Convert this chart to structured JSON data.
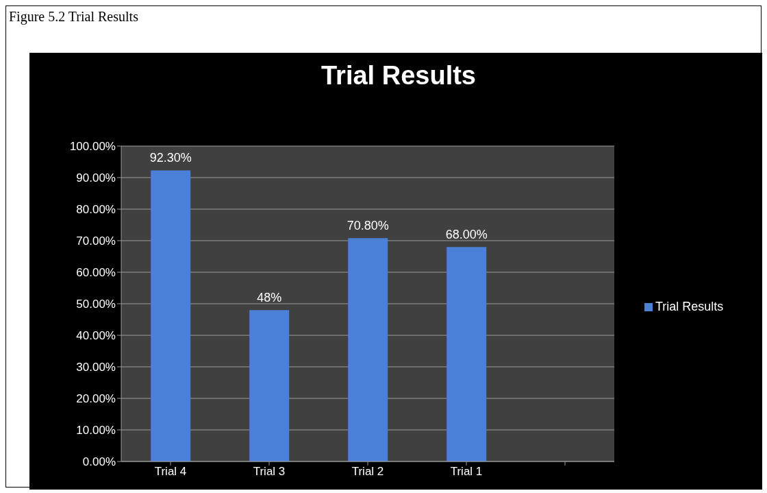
{
  "chart_data": {
    "type": "bar",
    "title": "Trial Results",
    "annotations": [
      "Figure 5.2 Trial Results"
    ],
    "categories": [
      "Trial 4",
      "Trial 3",
      "Trial 2",
      "Trial 1",
      null
    ],
    "series": [
      {
        "name": "Trial Results",
        "color": "#4a80d6",
        "values": [
          92.3,
          48,
          70.8,
          68,
          null
        ],
        "value_labels": [
          "92.30%",
          "48%",
          "70.80%",
          "68.00%",
          null
        ]
      }
    ],
    "ylim": [
      0,
      100
    ],
    "yticks": [
      {
        "value": 0,
        "label": "0.00%"
      },
      {
        "value": 10,
        "label": "10.00%"
      },
      {
        "value": 20,
        "label": "20.00%"
      },
      {
        "value": 30,
        "label": "30.00%"
      },
      {
        "value": 40,
        "label": "40.00%"
      },
      {
        "value": 50,
        "label": "50.00%"
      },
      {
        "value": 60,
        "label": "60.00%"
      },
      {
        "value": 70,
        "label": "70.00%"
      },
      {
        "value": 80,
        "label": "80.00%"
      },
      {
        "value": 90,
        "label": "90.00%"
      },
      {
        "value": 100,
        "label": "100.00%"
      }
    ],
    "grid": "y",
    "legend": "right"
  }
}
